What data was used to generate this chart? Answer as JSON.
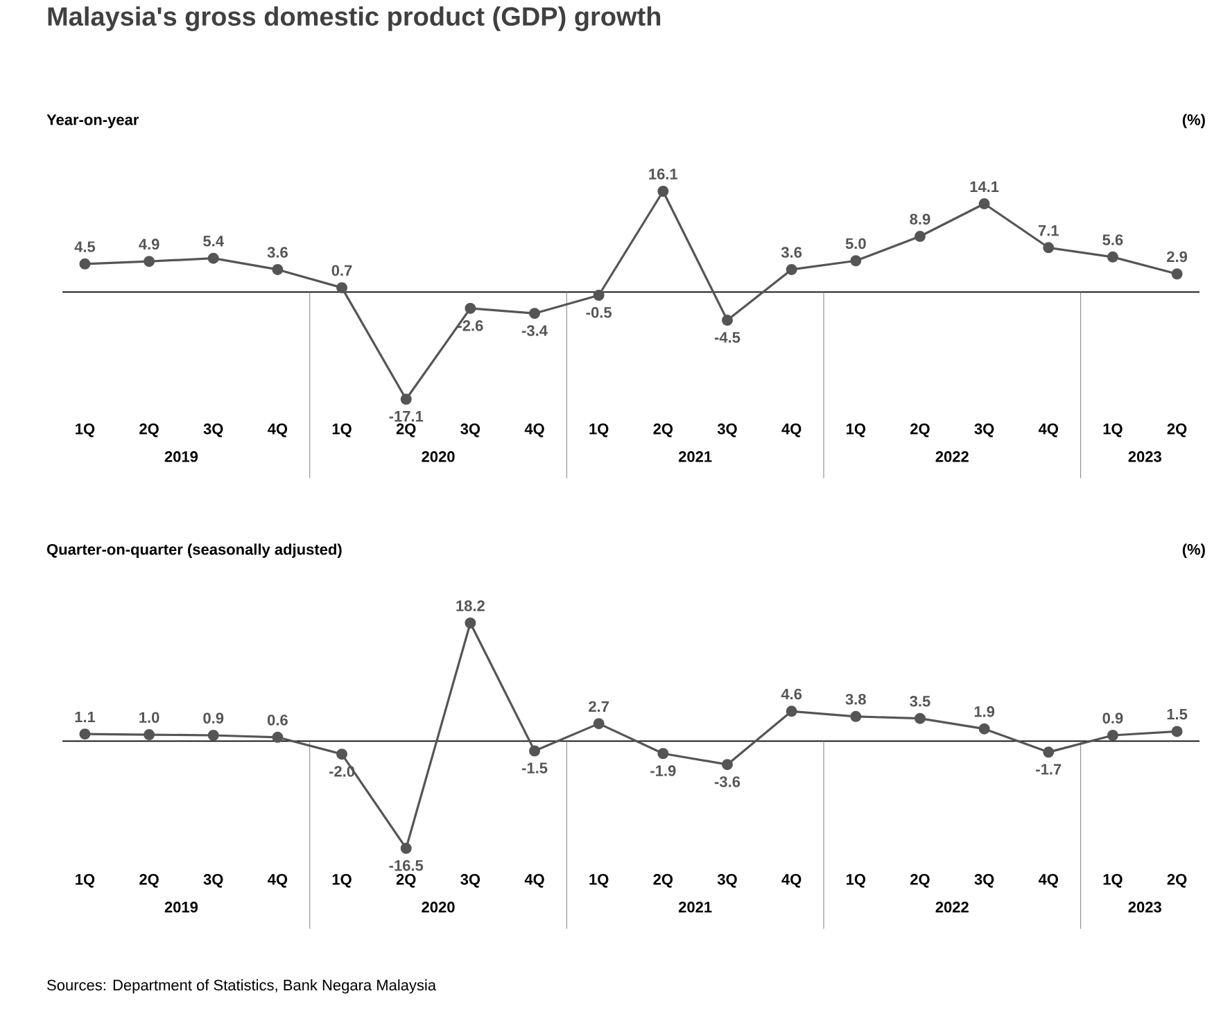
{
  "chart_data": [
    {
      "type": "line",
      "title": "Malaysia's gross domestic product (GDP) growth",
      "subtitle": "Year-on-year",
      "ylabel": "(%)",
      "categories": [
        "1Q",
        "2Q",
        "3Q",
        "4Q",
        "1Q",
        "2Q",
        "3Q",
        "4Q",
        "1Q",
        "2Q",
        "3Q",
        "4Q",
        "1Q",
        "2Q",
        "3Q",
        "4Q",
        "1Q",
        "2Q"
      ],
      "values": [
        4.5,
        4.9,
        5.4,
        3.6,
        0.7,
        -17.1,
        -2.6,
        -3.4,
        -0.5,
        16.1,
        -4.5,
        3.6,
        5.0,
        8.9,
        14.1,
        7.1,
        5.6,
        2.9
      ],
      "value_labels": [
        "4.5",
        "4.9",
        "5.4",
        "3.6",
        "0.7",
        "-17.1",
        "-2.6",
        "-3.4",
        "-0.5",
        "16.1",
        "-4.5",
        "3.6",
        "5.0",
        "8.9",
        "14.1",
        "7.1",
        "5.6",
        "2.9"
      ],
      "color": "#555555",
      "marker": "circle",
      "line_style": "solid",
      "annotations": [
        "2019",
        "2020",
        "2021",
        "2022",
        "2023"
      ]
    },
    {
      "type": "line",
      "title": "Quarter-on-quarter (seasonally adjusted)",
      "ylabel": "(%)",
      "categories": [
        "1Q",
        "2Q",
        "3Q",
        "4Q",
        "1Q",
        "2Q",
        "3Q",
        "4Q",
        "1Q",
        "2Q",
        "3Q",
        "4Q",
        "1Q",
        "2Q",
        "3Q",
        "4Q",
        "1Q",
        "2Q"
      ],
      "values": [
        1.1,
        1.0,
        0.9,
        0.6,
        -2.0,
        -16.5,
        18.2,
        -1.5,
        2.7,
        -1.9,
        -3.6,
        4.6,
        3.8,
        3.5,
        1.9,
        -1.7,
        0.9,
        1.5
      ],
      "value_labels": [
        "1.1",
        "1.0",
        "0.9",
        "0.6",
        "-2.0",
        "-16.5",
        "18.2",
        "-1.5",
        "2.7",
        "-1.9",
        "-3.6",
        "4.6",
        "3.8",
        "3.5",
        "1.9",
        "-1.7",
        "0.9",
        "1.5"
      ],
      "color": "#555555",
      "marker": "circle",
      "line_style": "solid",
      "annotations": [
        "2019",
        "2020",
        "2021",
        "2022",
        "2023",
        "Sources: Department of Statistics, Bank Negara Malaysia"
      ]
    }
  ]
}
